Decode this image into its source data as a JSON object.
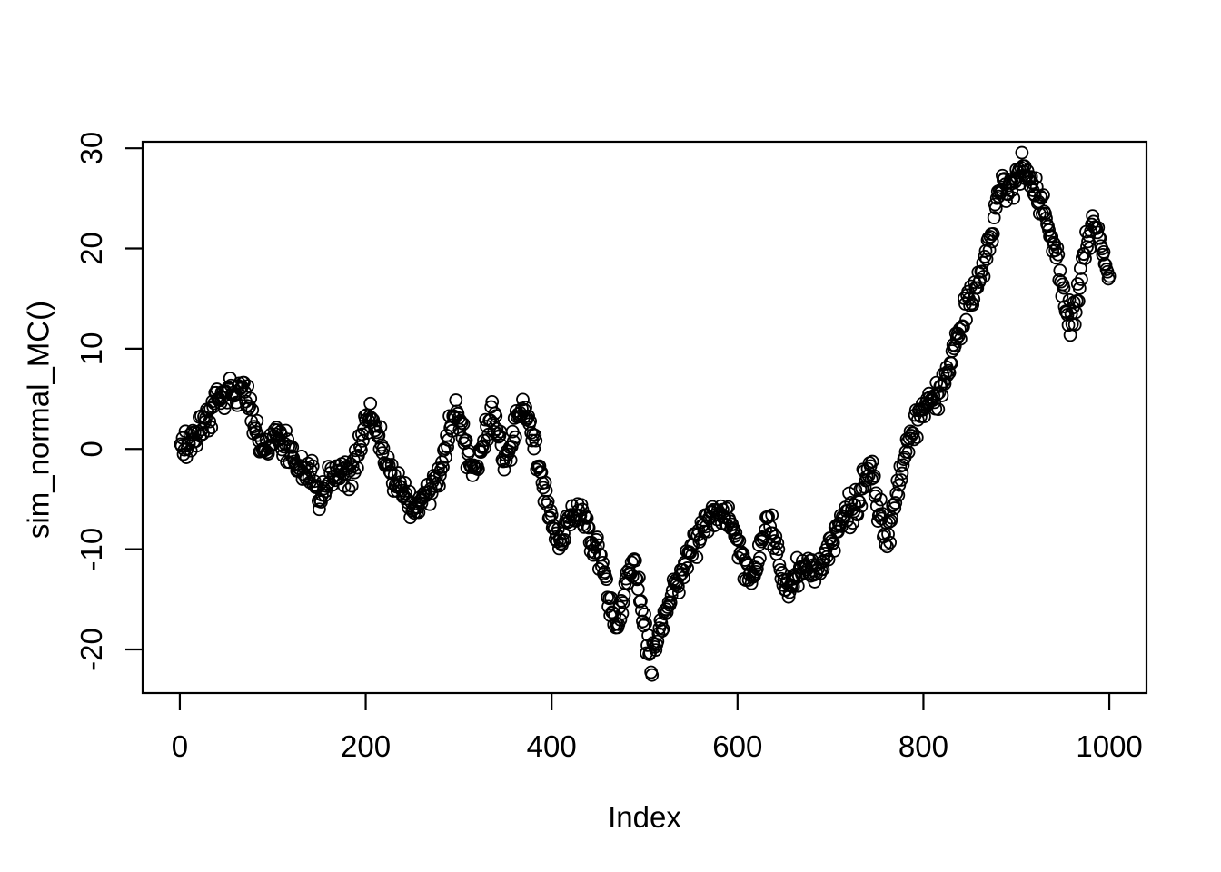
{
  "figure": {
    "background": "#ffffff",
    "foreground": "#000000"
  },
  "chart_data": {
    "type": "scatter",
    "title": "",
    "xlabel": "Index",
    "ylabel": "sim_normal_MC()",
    "legend": null,
    "grid": false,
    "x_ticks": [
      0,
      200,
      400,
      600,
      800,
      1000
    ],
    "y_ticks": [
      -20,
      -10,
      0,
      10,
      20,
      30
    ],
    "x_tick_labels": [
      "0",
      "200",
      "400",
      "600",
      "800",
      "1000"
    ],
    "y_tick_labels": [
      "-20",
      "-10",
      "0",
      "10",
      "20",
      "30"
    ],
    "xlim": [
      -40,
      1040
    ],
    "ylim": [
      -24.35,
      30.65
    ],
    "n_points": 1000,
    "marker": "open-circle",
    "marker_color": "#000000",
    "noise_sd": 0.7,
    "seed": 12,
    "series_anchors": [
      [
        1,
        -0.5
      ],
      [
        6,
        0.1
      ],
      [
        12,
        0.7
      ],
      [
        18,
        1.4
      ],
      [
        25,
        2.5
      ],
      [
        32,
        3.5
      ],
      [
        40,
        4.9
      ],
      [
        48,
        5.5
      ],
      [
        55,
        6.0
      ],
      [
        62,
        5.8
      ],
      [
        68,
        5.5
      ],
      [
        74,
        4.5
      ],
      [
        80,
        2.7
      ],
      [
        86,
        0.9
      ],
      [
        91,
        -0.3
      ],
      [
        96,
        0.7
      ],
      [
        101,
        1.5
      ],
      [
        107,
        1.0
      ],
      [
        113,
        0.3
      ],
      [
        119,
        -0.4
      ],
      [
        125,
        -1.1
      ],
      [
        131,
        -1.9
      ],
      [
        137,
        -2.4
      ],
      [
        143,
        -2.9
      ],
      [
        147,
        -3.9
      ],
      [
        151,
        -5.0
      ],
      [
        155,
        -4.1
      ],
      [
        160,
        -3.1
      ],
      [
        166,
        -2.5
      ],
      [
        172,
        -2.2
      ],
      [
        178,
        -2.1
      ],
      [
        184,
        -2.4
      ],
      [
        190,
        -1.3
      ],
      [
        196,
        0.7
      ],
      [
        201,
        2.5
      ],
      [
        205,
        3.8
      ],
      [
        210,
        2.5
      ],
      [
        215,
        0.9
      ],
      [
        220,
        -0.7
      ],
      [
        226,
        -2.1
      ],
      [
        232,
        -3.1
      ],
      [
        238,
        -3.9
      ],
      [
        244,
        -4.5
      ],
      [
        250,
        -5.3
      ],
      [
        256,
        -5.9
      ],
      [
        261,
        -5.1
      ],
      [
        266,
        -4.5
      ],
      [
        271,
        -4.2
      ],
      [
        276,
        -3.3
      ],
      [
        281,
        -1.7
      ],
      [
        286,
        0.5
      ],
      [
        291,
        2.5
      ],
      [
        296,
        3.5
      ],
      [
        301,
        3.1
      ],
      [
        306,
        1.3
      ],
      [
        311,
        -1.1
      ],
      [
        316,
        -2.5
      ],
      [
        321,
        -1.3
      ],
      [
        326,
        0.5
      ],
      [
        331,
        2.1
      ],
      [
        336,
        2.9
      ],
      [
        341,
        2.1
      ],
      [
        346,
        0.3
      ],
      [
        350,
        -1.3
      ],
      [
        354,
        -0.3
      ],
      [
        359,
        1.7
      ],
      [
        364,
        3.3
      ],
      [
        369,
        3.8
      ],
      [
        374,
        2.9
      ],
      [
        379,
        1.3
      ],
      [
        384,
        -0.9
      ],
      [
        389,
        -2.9
      ],
      [
        394,
        -5.1
      ],
      [
        399,
        -6.9
      ],
      [
        404,
        -8.3
      ],
      [
        409,
        -9.4
      ],
      [
        413,
        -8.7
      ],
      [
        418,
        -7.5
      ],
      [
        423,
        -6.7
      ],
      [
        428,
        -6.2
      ],
      [
        433,
        -6.3
      ],
      [
        438,
        -7.3
      ],
      [
        444,
        -9.1
      ],
      [
        450,
        -10.7
      ],
      [
        455,
        -11.9
      ],
      [
        460,
        -13.7
      ],
      [
        464,
        -15.7
      ],
      [
        468,
        -17.0
      ],
      [
        472,
        -17.3
      ],
      [
        476,
        -15.7
      ],
      [
        480,
        -13.5
      ],
      [
        485,
        -11.7
      ],
      [
        489,
        -11.4
      ],
      [
        493,
        -13.1
      ],
      [
        497,
        -15.5
      ],
      [
        501,
        -17.9
      ],
      [
        504,
        -19.9
      ],
      [
        507,
        -21.8
      ],
      [
        510,
        -20.7
      ],
      [
        514,
        -19.0
      ],
      [
        518,
        -17.5
      ],
      [
        523,
        -16.3
      ],
      [
        528,
        -14.9
      ],
      [
        533,
        -13.5
      ],
      [
        538,
        -12.3
      ],
      [
        543,
        -11.3
      ],
      [
        548,
        -10.5
      ],
      [
        553,
        -9.6
      ],
      [
        558,
        -8.7
      ],
      [
        563,
        -7.8
      ],
      [
        568,
        -7.0
      ],
      [
        573,
        -6.3
      ],
      [
        578,
        -6.0
      ],
      [
        583,
        -6.4
      ],
      [
        588,
        -7.1
      ],
      [
        593,
        -7.7
      ],
      [
        598,
        -8.6
      ],
      [
        603,
        -9.9
      ],
      [
        608,
        -11.7
      ],
      [
        613,
        -13.0
      ],
      [
        617,
        -13.1
      ],
      [
        621,
        -11.7
      ],
      [
        625,
        -10.0
      ],
      [
        629,
        -8.5
      ],
      [
        633,
        -7.5
      ],
      [
        637,
        -8.1
      ],
      [
        641,
        -9.6
      ],
      [
        646,
        -11.9
      ],
      [
        651,
        -14.0
      ],
      [
        655,
        -14.6
      ],
      [
        659,
        -13.6
      ],
      [
        664,
        -12.5
      ],
      [
        669,
        -11.8
      ],
      [
        674,
        -11.4
      ],
      [
        679,
        -11.9
      ],
      [
        684,
        -12.3
      ],
      [
        689,
        -11.6
      ],
      [
        694,
        -10.6
      ],
      [
        699,
        -9.6
      ],
      [
        704,
        -8.8
      ],
      [
        709,
        -7.8
      ],
      [
        714,
        -6.7
      ],
      [
        719,
        -6.0
      ],
      [
        724,
        -6.3
      ],
      [
        729,
        -5.4
      ],
      [
        734,
        -4.1
      ],
      [
        739,
        -2.8
      ],
      [
        743,
        -2.4
      ],
      [
        747,
        -3.7
      ],
      [
        751,
        -5.5
      ],
      [
        755,
        -7.3
      ],
      [
        759,
        -8.8
      ],
      [
        763,
        -8.1
      ],
      [
        767,
        -6.4
      ],
      [
        771,
        -4.7
      ],
      [
        775,
        -3.1
      ],
      [
        779,
        -1.5
      ],
      [
        783,
        -0.1
      ],
      [
        787,
        1.3
      ],
      [
        791,
        2.3
      ],
      [
        795,
        3.2
      ],
      [
        799,
        3.9
      ],
      [
        803,
        4.7
      ],
      [
        807,
        5.2
      ],
      [
        811,
        4.6
      ],
      [
        815,
        5.0
      ],
      [
        819,
        6.0
      ],
      [
        823,
        6.9
      ],
      [
        827,
        7.9
      ],
      [
        831,
        9.0
      ],
      [
        835,
        10.5
      ],
      [
        839,
        12.0
      ],
      [
        843,
        13.3
      ],
      [
        847,
        14.3
      ],
      [
        851,
        15.0
      ],
      [
        855,
        15.7
      ],
      [
        859,
        16.7
      ],
      [
        863,
        17.8
      ],
      [
        867,
        19.3
      ],
      [
        871,
        20.9
      ],
      [
        875,
        22.8
      ],
      [
        879,
        24.6
      ],
      [
        883,
        26.0
      ],
      [
        887,
        26.5
      ],
      [
        891,
        25.6
      ],
      [
        895,
        25.9
      ],
      [
        899,
        26.8
      ],
      [
        903,
        27.6
      ],
      [
        907,
        28.1
      ],
      [
        911,
        27.6
      ],
      [
        915,
        26.8
      ],
      [
        919,
        26.1
      ],
      [
        923,
        25.5
      ],
      [
        927,
        24.6
      ],
      [
        931,
        23.6
      ],
      [
        935,
        22.2
      ],
      [
        939,
        20.8
      ],
      [
        943,
        19.1
      ],
      [
        947,
        17.3
      ],
      [
        951,
        15.4
      ],
      [
        955,
        13.6
      ],
      [
        959,
        12.6
      ],
      [
        963,
        14.2
      ],
      [
        967,
        16.4
      ],
      [
        971,
        18.4
      ],
      [
        975,
        20.2
      ],
      [
        979,
        21.8
      ],
      [
        983,
        22.9
      ],
      [
        986,
        22.4
      ],
      [
        989,
        21.3
      ],
      [
        992,
        20.2
      ],
      [
        995,
        19.0
      ],
      [
        998,
        17.6
      ],
      [
        1000,
        16.8
      ]
    ]
  }
}
